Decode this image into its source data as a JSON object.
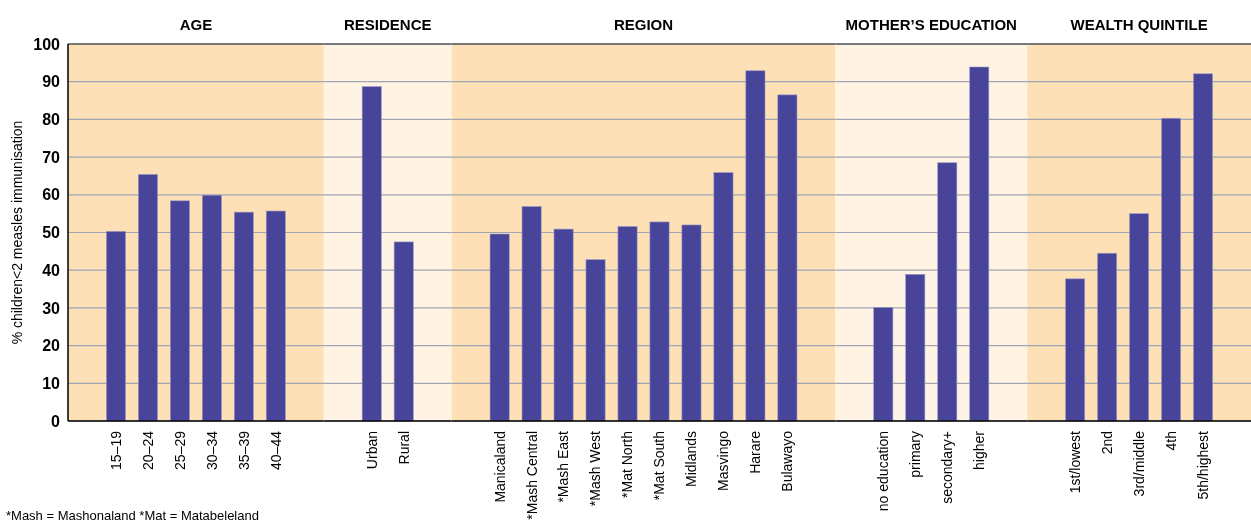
{
  "chart_data": [
    {
      "type": "bar",
      "title": "AGE",
      "ylabel": "% children<2 measles immunisation",
      "categories": [
        "15–19",
        "20–24",
        "25–29",
        "30–34",
        "35–39",
        "40–44"
      ],
      "values": [
        50.3,
        65.4,
        58.4,
        59.9,
        55.4,
        55.7
      ],
      "color": "#48449a",
      "ylim": [
        0,
        100
      ],
      "yticks": [
        0,
        10,
        20,
        30,
        40,
        50,
        60,
        70,
        80,
        90,
        100
      ],
      "grid": "y",
      "annotations": [
        "*Mash = Mashonaland *Mat = Matabeleland"
      ]
    },
    {
      "type": "bar",
      "title": "RESIDENCE",
      "categories": [
        "Urban",
        "Rural"
      ],
      "values": [
        88.7,
        47.5
      ],
      "color": "#48449a",
      "ylim": [
        0,
        100
      ],
      "yticks": [
        0,
        10,
        20,
        30,
        40,
        50,
        60,
        70,
        80,
        90,
        100
      ],
      "grid": "y",
      "tick_labels": "x"
    },
    {
      "type": "bar",
      "title": "REGION",
      "categories": [
        "Manicaland",
        "*Mash Central",
        "*Mash East",
        "*Mash West",
        "*Mat North",
        "*Mat South",
        "Midlands",
        "Masvingo",
        "Harare",
        "Bulawayo"
      ],
      "values": [
        49.6,
        56.9,
        50.9,
        42.8,
        51.6,
        52.8,
        52.0,
        65.9,
        92.9,
        86.5
      ],
      "color": "#48449a",
      "ylim": [
        0,
        100
      ],
      "yticks": [
        0,
        10,
        20,
        30,
        40,
        50,
        60,
        70,
        80,
        90,
        100
      ],
      "grid": "y",
      "tick_labels": "x"
    },
    {
      "type": "bar",
      "title": "MOTHER’S EDUCATION",
      "categories": [
        "no education",
        "primary",
        "secondary+",
        "higher"
      ],
      "values": [
        30.1,
        38.9,
        68.5,
        93.9
      ],
      "color": "#48449a",
      "ylim": [
        0,
        100
      ],
      "yticks": [
        0,
        10,
        20,
        30,
        40,
        50,
        60,
        70,
        80,
        90,
        100
      ],
      "grid": "y",
      "tick_labels": "x"
    },
    {
      "type": "bar",
      "title": "WEALTH QUINTILE",
      "categories": [
        "1st/lowest",
        "2nd",
        "3rd/middle",
        "4th",
        "5th/highest"
      ],
      "values": [
        37.7,
        44.5,
        55.0,
        80.3,
        92.1
      ],
      "color": "#48449a",
      "ylim": [
        0,
        100
      ],
      "yticks": [
        0,
        10,
        20,
        30,
        40,
        50,
        60,
        70,
        80,
        90,
        100
      ],
      "grid": "y",
      "tick_labels": "x"
    }
  ]
}
